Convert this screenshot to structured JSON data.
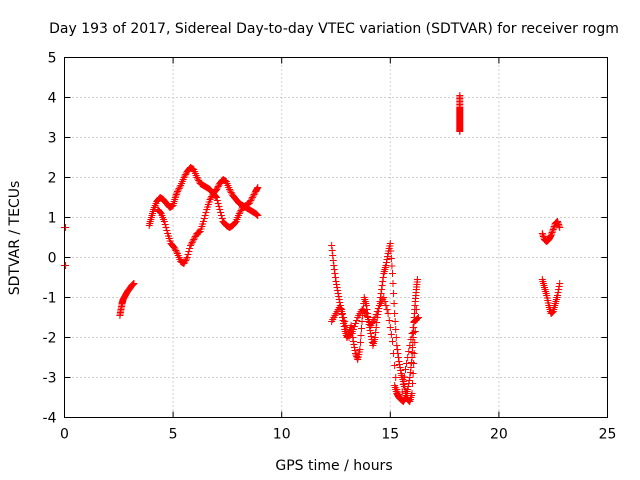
{
  "chart_data": {
    "type": "scatter",
    "title": "Day 193 of 2017, Sidereal Day-to-day VTEC variation (SDTVAR) for receiver rogm",
    "xlabel": "GPS time / hours",
    "ylabel": "SDTVAR / TECUs",
    "xlim": [
      0,
      25
    ],
    "ylim": [
      -4,
      5
    ],
    "xticks": [
      "0",
      "5",
      "10",
      "15",
      "20",
      "25"
    ],
    "yticks": [
      "-4",
      "-3",
      "-2",
      "-1",
      "0",
      "1",
      "2",
      "3",
      "4",
      "5"
    ],
    "grid": true,
    "marker": "+",
    "color": "#ff0000",
    "segments": [
      {
        "name": "start-high",
        "x": [
          0,
          0.05
        ],
        "y": [
          0.75,
          0.75
        ]
      },
      {
        "name": "start-low",
        "x": [
          0,
          0.05
        ],
        "y": [
          -0.2,
          -0.2
        ]
      },
      {
        "name": "seg-1",
        "x": [
          2.55,
          2.6,
          2.65,
          2.7,
          2.8,
          2.9,
          3.0,
          3.1,
          3.2
        ],
        "y": [
          -1.45,
          -1.3,
          -1.15,
          -1.05,
          -0.95,
          -0.85,
          -0.78,
          -0.7,
          -0.65
        ]
      },
      {
        "name": "seg-2",
        "x": [
          3.9,
          4.0,
          4.1,
          4.25,
          4.4,
          4.55,
          4.7,
          4.85,
          5.0,
          5.1,
          5.2,
          5.35,
          5.5,
          5.65,
          5.8,
          5.95,
          6.1,
          6.25,
          6.4,
          6.55,
          6.7,
          6.85,
          7.0,
          7.15,
          7.3,
          7.45,
          7.6,
          7.75,
          7.9,
          8.05,
          8.2,
          8.35,
          8.5,
          8.65,
          8.8,
          8.9
        ],
        "y": [
          0.8,
          1.0,
          1.2,
          1.4,
          1.5,
          1.45,
          1.35,
          1.25,
          1.3,
          1.5,
          1.65,
          1.8,
          2.0,
          2.15,
          2.25,
          2.2,
          2.0,
          1.85,
          1.8,
          1.75,
          1.7,
          1.6,
          1.7,
          1.85,
          1.95,
          1.9,
          1.7,
          1.55,
          1.45,
          1.35,
          1.3,
          1.25,
          1.2,
          1.15,
          1.1,
          1.05
        ]
      },
      {
        "name": "seg-3",
        "x": [
          4.3,
          4.45,
          4.6,
          4.75,
          4.9,
          5.05,
          5.2,
          5.35,
          5.5,
          5.65,
          5.8,
          5.95,
          6.1,
          6.25,
          6.4,
          6.55,
          6.7,
          6.85,
          7.0,
          7.15,
          7.3,
          7.45,
          7.6,
          7.75,
          7.9,
          8.05,
          8.2,
          8.35,
          8.5,
          8.65,
          8.8,
          8.9
        ],
        "y": [
          1.2,
          1.1,
          0.9,
          0.6,
          0.35,
          0.25,
          0.1,
          -0.1,
          -0.15,
          0.0,
          0.3,
          0.45,
          0.6,
          0.65,
          0.9,
          1.2,
          1.45,
          1.6,
          1.5,
          1.2,
          0.9,
          0.8,
          0.75,
          0.8,
          0.9,
          1.1,
          1.25,
          1.3,
          1.35,
          1.5,
          1.65,
          1.75
        ]
      },
      {
        "name": "outlier",
        "x": [
          18.2,
          18.2,
          18.2,
          18.2,
          18.2,
          18.2,
          18.2,
          18.2,
          18.2
        ],
        "y": [
          4.05,
          3.9,
          3.75,
          3.65,
          3.55,
          3.45,
          3.35,
          3.25,
          3.15
        ]
      },
      {
        "name": "seg-4",
        "x": [
          12.3,
          12.4,
          12.5,
          12.6,
          12.7,
          12.8,
          12.9,
          13.0,
          13.1,
          13.2,
          13.3,
          13.4,
          13.5,
          13.6,
          13.7,
          13.8,
          13.9,
          14.0,
          14.1,
          14.2,
          14.3,
          14.4,
          14.5,
          14.6,
          14.7,
          14.8,
          14.9,
          15.0,
          15.1,
          15.2,
          15.3,
          15.4,
          15.5,
          15.6,
          15.7,
          15.8,
          15.9,
          16.0,
          16.1,
          16.2
        ],
        "y": [
          0.3,
          -0.2,
          -0.6,
          -0.9,
          -1.2,
          -1.5,
          -1.8,
          -2.0,
          -1.9,
          -1.7,
          -2.1,
          -2.4,
          -2.55,
          -2.3,
          -1.6,
          -1.0,
          -1.2,
          -1.6,
          -1.9,
          -2.2,
          -2.0,
          -1.5,
          -1.2,
          -0.8,
          -0.4,
          -0.2,
          0.1,
          0.35,
          -0.4,
          -1.4,
          -2.2,
          -2.6,
          -2.9,
          -3.1,
          -3.35,
          -3.55,
          -3.6,
          -3.4,
          -2.4,
          -1.3
        ]
      },
      {
        "name": "seg-5",
        "x": [
          12.3,
          12.5,
          12.7,
          12.9,
          13.1,
          13.3,
          13.5,
          13.7,
          13.9,
          14.1,
          14.3,
          14.5,
          14.7,
          14.9,
          15.1,
          15.3,
          15.5,
          15.7,
          15.9,
          16.1,
          16.3
        ],
        "y": [
          -1.6,
          -1.4,
          -1.2,
          -1.6,
          -2.0,
          -1.8,
          -1.5,
          -1.3,
          -1.4,
          -1.7,
          -1.5,
          -1.2,
          -1.0,
          -1.4,
          -2.1,
          -3.3,
          -3.55,
          -2.8,
          -2.2,
          -1.6,
          -1.5
        ]
      },
      {
        "name": "seg-6",
        "x": [
          15.2,
          15.3,
          15.4,
          15.5,
          15.6,
          15.7,
          15.8,
          15.9,
          16.0,
          16.05,
          16.1,
          16.15,
          16.2,
          16.25
        ],
        "y": [
          -3.2,
          -3.4,
          -3.5,
          -3.55,
          -3.6,
          -3.5,
          -3.3,
          -3.0,
          -2.5,
          -2.0,
          -1.5,
          -1.1,
          -0.8,
          -0.55
        ]
      },
      {
        "name": "seg-7",
        "x": [
          22.0,
          22.1,
          22.2,
          22.3,
          22.4,
          22.5,
          22.6,
          22.7,
          22.8
        ],
        "y": [
          0.6,
          0.45,
          0.4,
          0.45,
          0.55,
          0.7,
          0.85,
          0.9,
          0.75
        ]
      },
      {
        "name": "seg-8",
        "x": [
          22.0,
          22.1,
          22.2,
          22.3,
          22.4,
          22.5,
          22.6,
          22.7,
          22.8
        ],
        "y": [
          -0.55,
          -0.75,
          -0.95,
          -1.2,
          -1.4,
          -1.35,
          -1.15,
          -0.95,
          -0.65
        ]
      }
    ]
  }
}
